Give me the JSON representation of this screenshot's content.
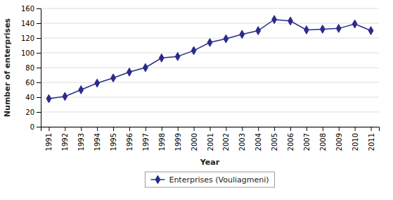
{
  "chart_data": {
    "type": "line",
    "xlabel": "Year",
    "ylabel": "Number of enterprises",
    "x": [
      1991,
      1992,
      1993,
      1994,
      1995,
      1996,
      1997,
      1998,
      1999,
      2000,
      2001,
      2002,
      2003,
      2004,
      2005,
      2006,
      2007,
      2008,
      2009,
      2010,
      2011
    ],
    "series": [
      {
        "name": "Enterprises (Vouliagmeni)",
        "color": "#2b2b8c",
        "marker": "diamond",
        "values": [
          38,
          41,
          50,
          59,
          66,
          74,
          80,
          93,
          95,
          103,
          114,
          119,
          125,
          130,
          145,
          143,
          131,
          132,
          133,
          139,
          130
        ]
      }
    ],
    "xlim": [
      1990.5,
      2011.5
    ],
    "xticks": [
      1991,
      1992,
      1993,
      1994,
      1995,
      1996,
      1997,
      1998,
      1999,
      2000,
      2001,
      2002,
      2003,
      2004,
      2005,
      2006,
      2007,
      2008,
      2009,
      2010,
      2011
    ],
    "ylim": [
      0,
      160
    ],
    "yticks": [
      0,
      20,
      40,
      60,
      80,
      100,
      120,
      140,
      160
    ],
    "grid": true,
    "legend": "bottom"
  }
}
